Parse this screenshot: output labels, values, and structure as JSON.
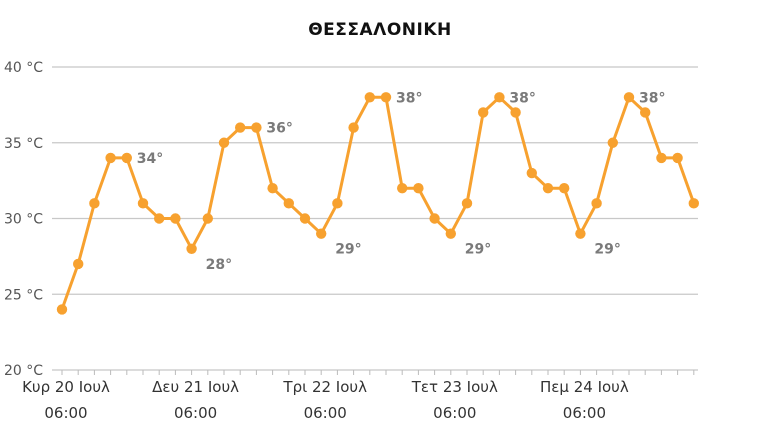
{
  "chart_data": {
    "type": "line",
    "title": "ΘΕΣΣΑΛΟΝΙΚΗ",
    "xlabel": "",
    "ylabel": "",
    "ylim": [
      20,
      40
    ],
    "y_ticks": [
      20,
      25,
      30,
      35,
      40
    ],
    "y_tick_labels": [
      "20 °C",
      "25 °C",
      "30 °C",
      "35 °C",
      "40 °C"
    ],
    "x_ticks": [
      {
        "index": 0,
        "day": "Κυρ 20 Ιουλ",
        "time": "06:00"
      },
      {
        "index": 8,
        "day": "Δευ 21 Ιουλ",
        "time": "06:00"
      },
      {
        "index": 16,
        "day": "Τρι 22 Ιουλ",
        "time": "06:00"
      },
      {
        "index": 24,
        "day": "Τετ 23 Ιουλ",
        "time": "06:00"
      },
      {
        "index": 32,
        "day": "Πεμ 24 Ιουλ",
        "time": "06:00"
      }
    ],
    "grid": true,
    "color": "#f7a12f",
    "series": [
      {
        "values": [
          24,
          27,
          31,
          34,
          34,
          31,
          30,
          30,
          28,
          30,
          35,
          36,
          36,
          32,
          31,
          30,
          29,
          31,
          36,
          38,
          38,
          32,
          32,
          30,
          29,
          31,
          37,
          38,
          37,
          33,
          32,
          32,
          29,
          31,
          35,
          38,
          37,
          34,
          34,
          31
        ]
      }
    ],
    "annotations": [
      {
        "index": 4,
        "text": "34°",
        "pos": "right"
      },
      {
        "index": 8,
        "text": "28°",
        "pos": "below"
      },
      {
        "index": 12,
        "text": "36°",
        "pos": "right"
      },
      {
        "index": 16,
        "text": "29°",
        "pos": "below"
      },
      {
        "index": 20,
        "text": "38°",
        "pos": "right"
      },
      {
        "index": 24,
        "text": "29°",
        "pos": "below"
      },
      {
        "index": 27,
        "text": "38°",
        "pos": "right"
      },
      {
        "index": 32,
        "text": "29°",
        "pos": "below"
      },
      {
        "index": 35,
        "text": "38°",
        "pos": "right"
      }
    ]
  }
}
